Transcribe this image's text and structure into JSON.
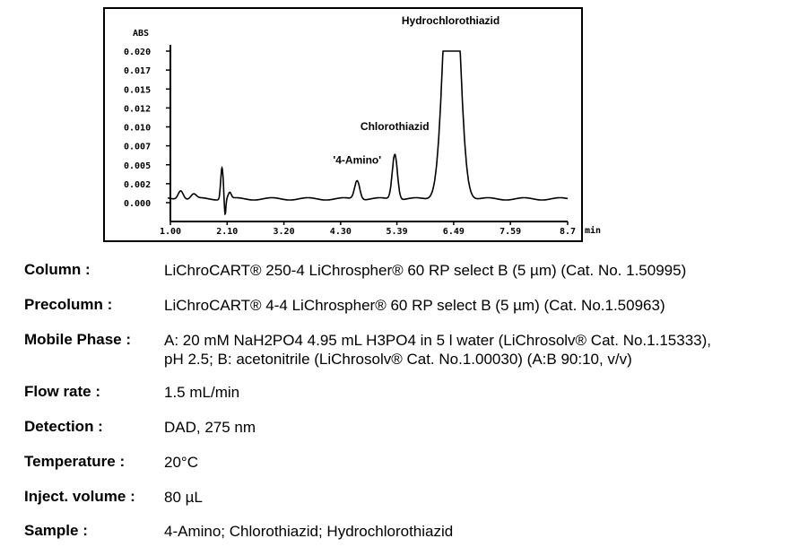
{
  "chart_data": {
    "type": "line",
    "ylabel": "ABS",
    "xlabel": "min",
    "yticks": [
      "0.020",
      "0.017",
      "0.015",
      "0.012",
      "0.010",
      "0.007",
      "0.005",
      "0.002",
      "0.000"
    ],
    "ytick_values": [
      0.02,
      0.0175,
      0.015,
      0.0125,
      0.01,
      0.0075,
      0.005,
      0.0025,
      0.0
    ],
    "xticks": [
      "1.00",
      "2.10",
      "3.20",
      "4.30",
      "5.39",
      "6.49",
      "7.59",
      "8.7"
    ],
    "xtick_values": [
      1.0,
      2.1,
      3.2,
      4.3,
      5.39,
      6.49,
      7.59,
      8.7
    ],
    "xlim": [
      1.0,
      8.7
    ],
    "ylim": [
      0.0,
      0.02
    ],
    "baseline": 0.0005,
    "peaks": [
      {
        "name": "",
        "rt": 1.2,
        "height": 0.0012,
        "width": 0.05
      },
      {
        "name": "",
        "rt": 1.45,
        "height": 0.0006,
        "width": 0.05
      },
      {
        "name": "",
        "rt": 2.0,
        "height": 0.0042,
        "width": 0.025
      },
      {
        "name": "",
        "rt": 2.06,
        "height": -0.0022,
        "width": 0.015
      },
      {
        "name": "",
        "rt": 2.15,
        "height": 0.0008,
        "width": 0.03
      },
      {
        "name": "'4-Amino'",
        "rt": 4.62,
        "height": 0.0025,
        "width": 0.05
      },
      {
        "name": "Chlorothiazid",
        "rt": 5.35,
        "height": 0.006,
        "width": 0.05
      },
      {
        "name": "Hydrochlorothiazid",
        "rt": 6.45,
        "height": 0.04,
        "width": 0.14
      }
    ],
    "clipped_at": 0.02,
    "grid": false
  },
  "conditions": [
    {
      "label": "Column :",
      "value": "LiChroCART® 250-4 LiChrospher® 60 RP select B (5 µm)  (Cat. No. 1.50995)"
    },
    {
      "label": "Precolumn :",
      "value": "LiChroCART® 4-4 LiChrospher® 60 RP select B (5 µm)  (Cat. No.1.50963)"
    },
    {
      "label": "Mobile Phase :",
      "value": "A: 20 mM NaH2PO4 4.95 mL H3PO4 in 5 l water (LiChrosolv® Cat. No.1.15333),",
      "value2": "pH 2.5; B: acetonitrile (LiChrosolv® Cat. No.1.00030) (A:B 90:10, v/v)"
    },
    {
      "label": "Flow rate :",
      "value": "1.5 mL/min"
    },
    {
      "label": "Detection :",
      "value": "DAD, 275 nm"
    },
    {
      "label": "Temperature :",
      "value": "20°C"
    },
    {
      "label": "Inject. volume :",
      "value": "80 µL"
    },
    {
      "label": "Sample :",
      "value": "4-Amino; Chlorothiazid; Hydrochlorothiazid"
    }
  ]
}
